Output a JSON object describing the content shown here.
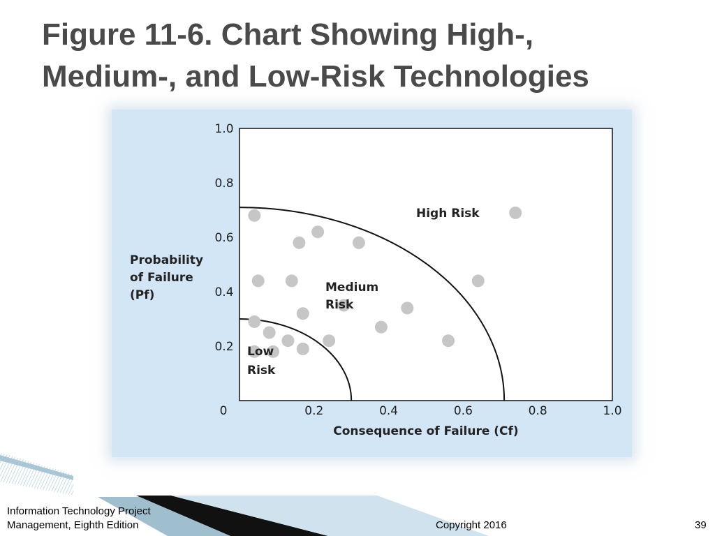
{
  "slide": {
    "title_line1": "Figure 11-6. Chart Showing High-,",
    "title_line2": "Medium-, and Low-Risk Technologies"
  },
  "chart_data": {
    "type": "scatter",
    "title": "",
    "xlabel": "Consequence of Failure (Cf)",
    "ylabel_lines": [
      "Probability",
      "of Failure",
      "(Pf)"
    ],
    "xlim": [
      0,
      1.0
    ],
    "ylim": [
      0,
      1.0
    ],
    "x_ticks": [
      "0",
      "0.2",
      "0.4",
      "0.6",
      "0.8",
      "1.0"
    ],
    "y_ticks": [
      "0.2",
      "0.4",
      "0.6",
      "0.8",
      "1.0"
    ],
    "grid": false,
    "point_color": "#c6c6c6",
    "region_labels": {
      "low": [
        "Low",
        "Risk"
      ],
      "medium": [
        "Medium",
        "Risk"
      ],
      "high": [
        "High Risk"
      ]
    },
    "boundaries": [
      {
        "name": "low-medium",
        "radius": 0.3
      },
      {
        "name": "medium-high",
        "radius": 0.71
      }
    ],
    "points": [
      {
        "x": 0.04,
        "y": 0.18
      },
      {
        "x": 0.09,
        "y": 0.18
      },
      {
        "x": 0.17,
        "y": 0.19
      },
      {
        "x": 0.04,
        "y": 0.29
      },
      {
        "x": 0.08,
        "y": 0.25
      },
      {
        "x": 0.13,
        "y": 0.22
      },
      {
        "x": 0.17,
        "y": 0.32
      },
      {
        "x": 0.24,
        "y": 0.22
      },
      {
        "x": 0.28,
        "y": 0.35
      },
      {
        "x": 0.38,
        "y": 0.27
      },
      {
        "x": 0.05,
        "y": 0.44
      },
      {
        "x": 0.14,
        "y": 0.44
      },
      {
        "x": 0.16,
        "y": 0.58
      },
      {
        "x": 0.21,
        "y": 0.62
      },
      {
        "x": 0.32,
        "y": 0.58
      },
      {
        "x": 0.45,
        "y": 0.34
      },
      {
        "x": 0.56,
        "y": 0.22
      },
      {
        "x": 0.04,
        "y": 0.68
      },
      {
        "x": 0.64,
        "y": 0.44
      },
      {
        "x": 0.74,
        "y": 0.69
      }
    ]
  },
  "footer": {
    "book_line1": "Information Technology Project",
    "book_line2": "Management, Eighth Edition",
    "copyright": "Copyright 2016",
    "page_number": "39"
  }
}
